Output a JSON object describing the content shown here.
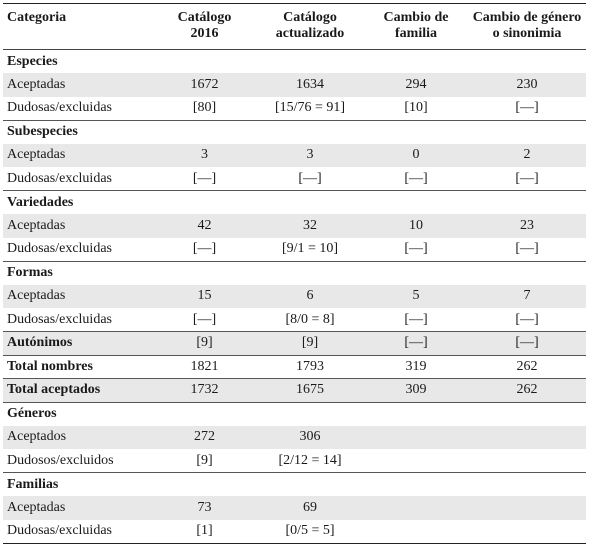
{
  "headers": {
    "categoria": "Categoria",
    "cat2016_l1": "Catálogo",
    "cat2016_l2": "2016",
    "act_l1": "Catálogo",
    "act_l2": "actualizado",
    "fam_l1": "Cambio de",
    "fam_l2": "familia",
    "gen_l1": "Cambio de género",
    "gen_l2": "o sinonimia"
  },
  "rows": [
    {
      "label": "Especies"
    },
    {
      "label": "Aceptadas",
      "v": [
        "1672",
        "1634",
        "294",
        "230"
      ]
    },
    {
      "label": "Dudosas/excluidas",
      "v": [
        "[80]",
        "[15/76 = 91]",
        "[10]",
        "[—]"
      ]
    },
    {
      "label": "Subespecies"
    },
    {
      "label": "Aceptadas",
      "v": [
        "3",
        "3",
        "0",
        "2"
      ]
    },
    {
      "label": "Dudosas/excluidas",
      "v": [
        "[—]",
        "[—]",
        "[—]",
        "[—]"
      ]
    },
    {
      "label": "Variedades"
    },
    {
      "label": "Aceptadas",
      "v": [
        "42",
        "32",
        "10",
        "23"
      ]
    },
    {
      "label": "Dudosas/excluidas",
      "v": [
        "[—]",
        "[9/1 = 10]",
        "[—]",
        "[—]"
      ]
    },
    {
      "label": "Formas"
    },
    {
      "label": "Aceptadas",
      "v": [
        "15",
        "6",
        "5",
        "7"
      ]
    },
    {
      "label": "Dudosas/excluidas",
      "v": [
        "[—]",
        "[8/0 = 8]",
        "[—]",
        "[—]"
      ]
    },
    {
      "label": "Autónimos",
      "v": [
        "[9]",
        "[9]",
        "[—]",
        "[—]"
      ]
    },
    {
      "label": "Total nombres",
      "v": [
        "1821",
        "1793",
        "319",
        "262"
      ]
    },
    {
      "label": "Total aceptados",
      "v": [
        "1732",
        "1675",
        "309",
        "262"
      ]
    },
    {
      "label": "Géneros"
    },
    {
      "label": "Aceptados",
      "v": [
        "272",
        "306",
        "",
        ""
      ]
    },
    {
      "label": "Dudosos/excluidos",
      "v": [
        "[9]",
        "[2/12 = 14]",
        "",
        ""
      ]
    },
    {
      "label": "Familias"
    },
    {
      "label": "Aceptadas",
      "v": [
        "73",
        "69",
        "",
        ""
      ]
    },
    {
      "label": "Dudosas/excluidas",
      "v": [
        "[1]",
        "[0/5 = 5]",
        "",
        ""
      ]
    }
  ]
}
